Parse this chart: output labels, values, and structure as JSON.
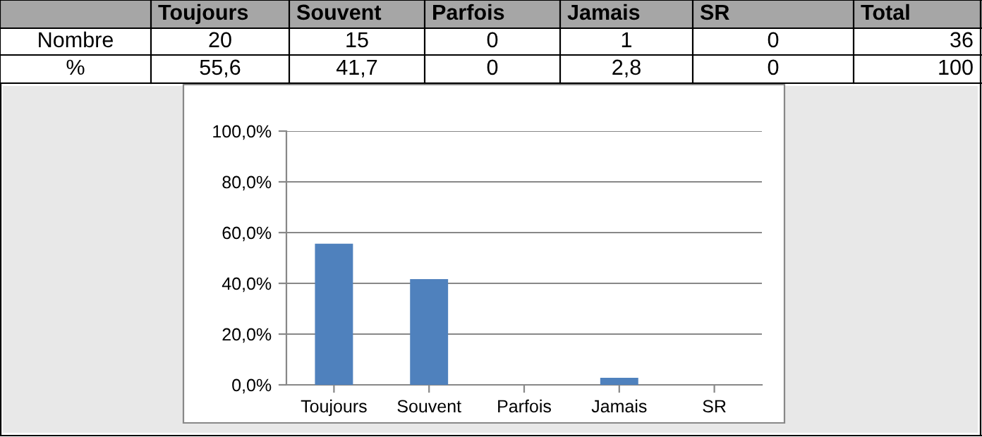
{
  "chart_data": {
    "type": "bar",
    "categories": [
      "Toujours",
      "Souvent",
      "Parfois",
      "Jamais",
      "SR"
    ],
    "values": [
      55.6,
      41.7,
      0,
      2.8,
      0
    ],
    "color": "#4f81bd",
    "annotations": [
      "Total",
      "Nombre",
      "20",
      "15",
      "0",
      "1",
      "0",
      "36",
      "%",
      "100",
      "55,6",
      "41,7",
      "0",
      "2,8",
      "0"
    ],
    "ylim": [
      0,
      100
    ],
    "yticks": [
      {
        "value": 0,
        "label": "0,0%"
      },
      {
        "value": 20,
        "label": "20,0%"
      },
      {
        "value": 40,
        "label": "40,0%"
      },
      {
        "value": 60,
        "label": "60,0%"
      },
      {
        "value": 80,
        "label": "80,0%"
      },
      {
        "value": 100,
        "label": "100,0%"
      }
    ],
    "grid": "y"
  }
}
